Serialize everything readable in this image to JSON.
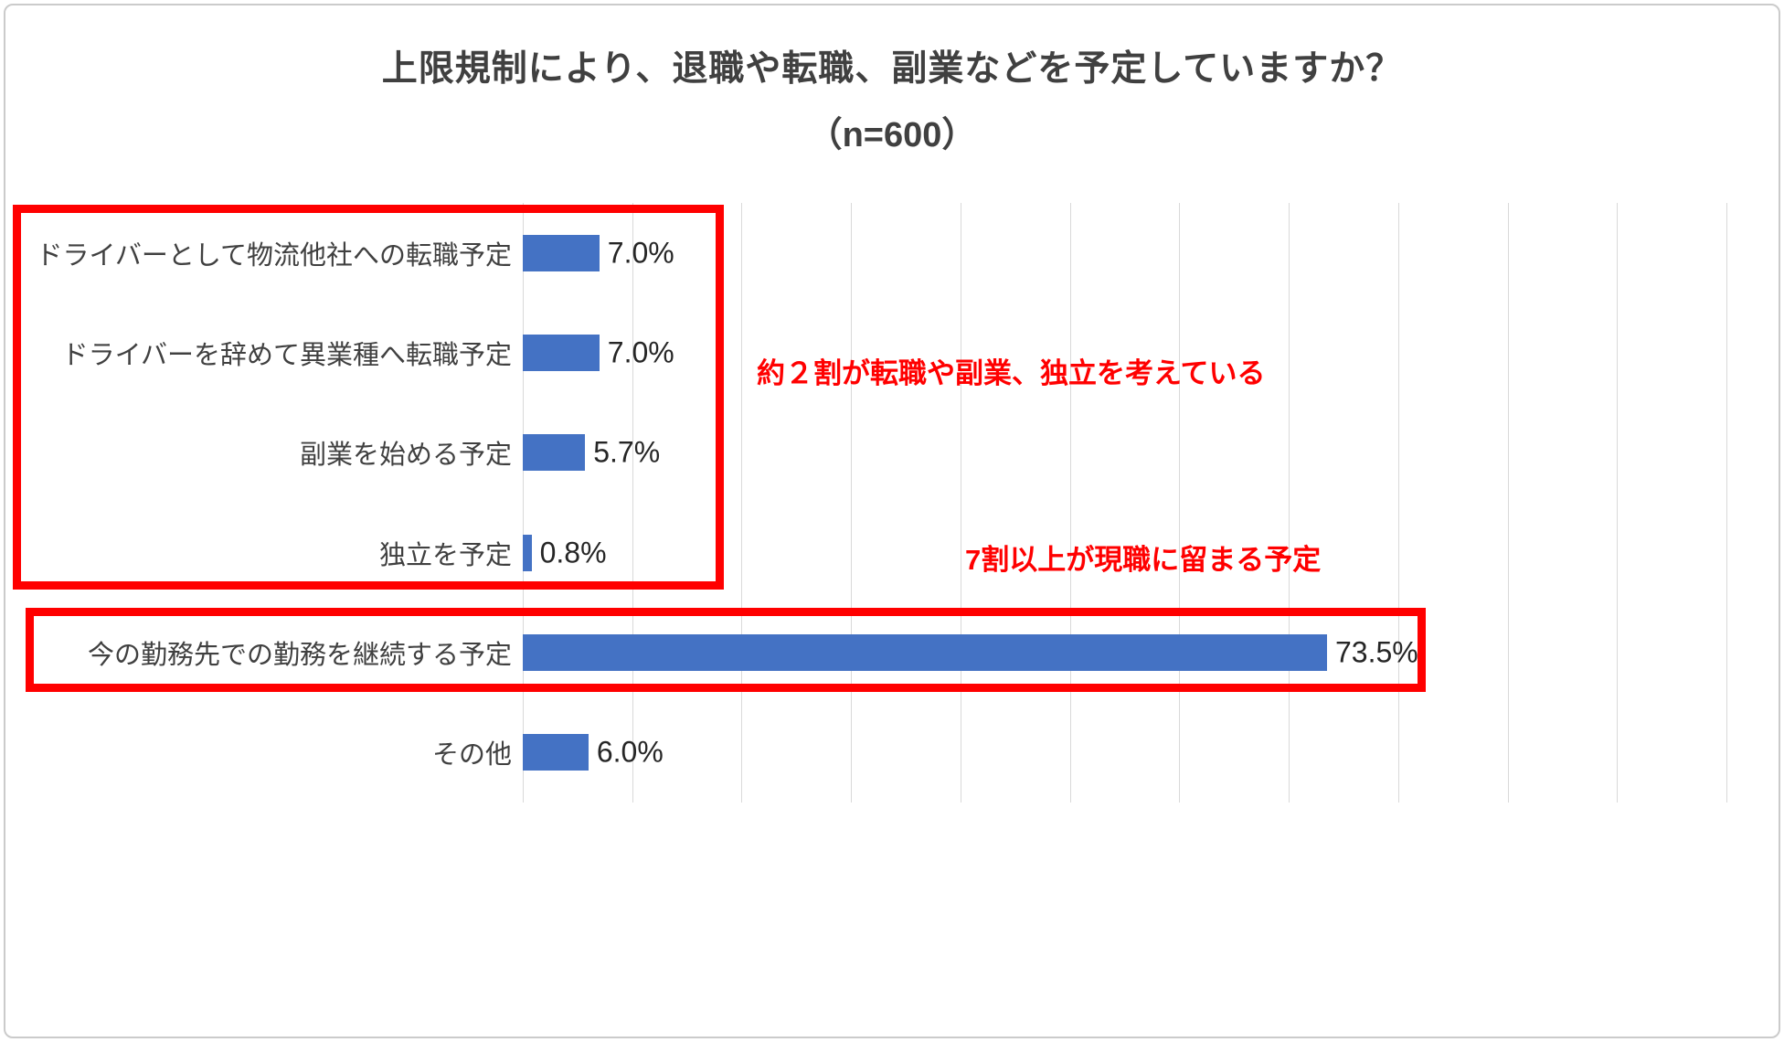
{
  "chart_data": {
    "type": "bar",
    "orientation": "horizontal",
    "title": "上限規制により、退職や転職、副業などを予定していますか？",
    "subtitle": "（n=600）",
    "sample_size": "n=600",
    "categories": [
      "ドライバーとして物流他社への転職予定",
      "ドライバーを辞めて異業種へ転職予定",
      "副業を始める予定",
      "独立を予定",
      "今の勤務先での勤務を継続する予定",
      "その他"
    ],
    "values": [
      7.0,
      7.0,
      5.7,
      0.8,
      73.5,
      6.0
    ],
    "value_labels": [
      "7.0%",
      "7.0%",
      "5.7%",
      "0.8%",
      "73.5%",
      "6.0%"
    ],
    "xlim": [
      0,
      110
    ],
    "gridlines_percent": [
      0,
      10,
      20,
      30,
      40,
      50,
      60,
      70,
      80,
      90,
      100,
      110
    ],
    "grid": true,
    "legend": false,
    "axis_tick_labels_visible": false,
    "bar_color": "#4472c4",
    "grid_color": "#d9d9d9",
    "annotations": [
      {
        "text": "約２割が転職や副業、独立を考えている",
        "color": "#ff0000"
      },
      {
        "text": "7割以上が現職に留まる予定",
        "color": "#ff0000"
      }
    ],
    "highlight_boxes": [
      {
        "encloses_rows": [
          0,
          1,
          2,
          3
        ],
        "color": "#ff0000"
      },
      {
        "encloses_rows": [
          4
        ],
        "color": "#ff0000"
      }
    ]
  }
}
